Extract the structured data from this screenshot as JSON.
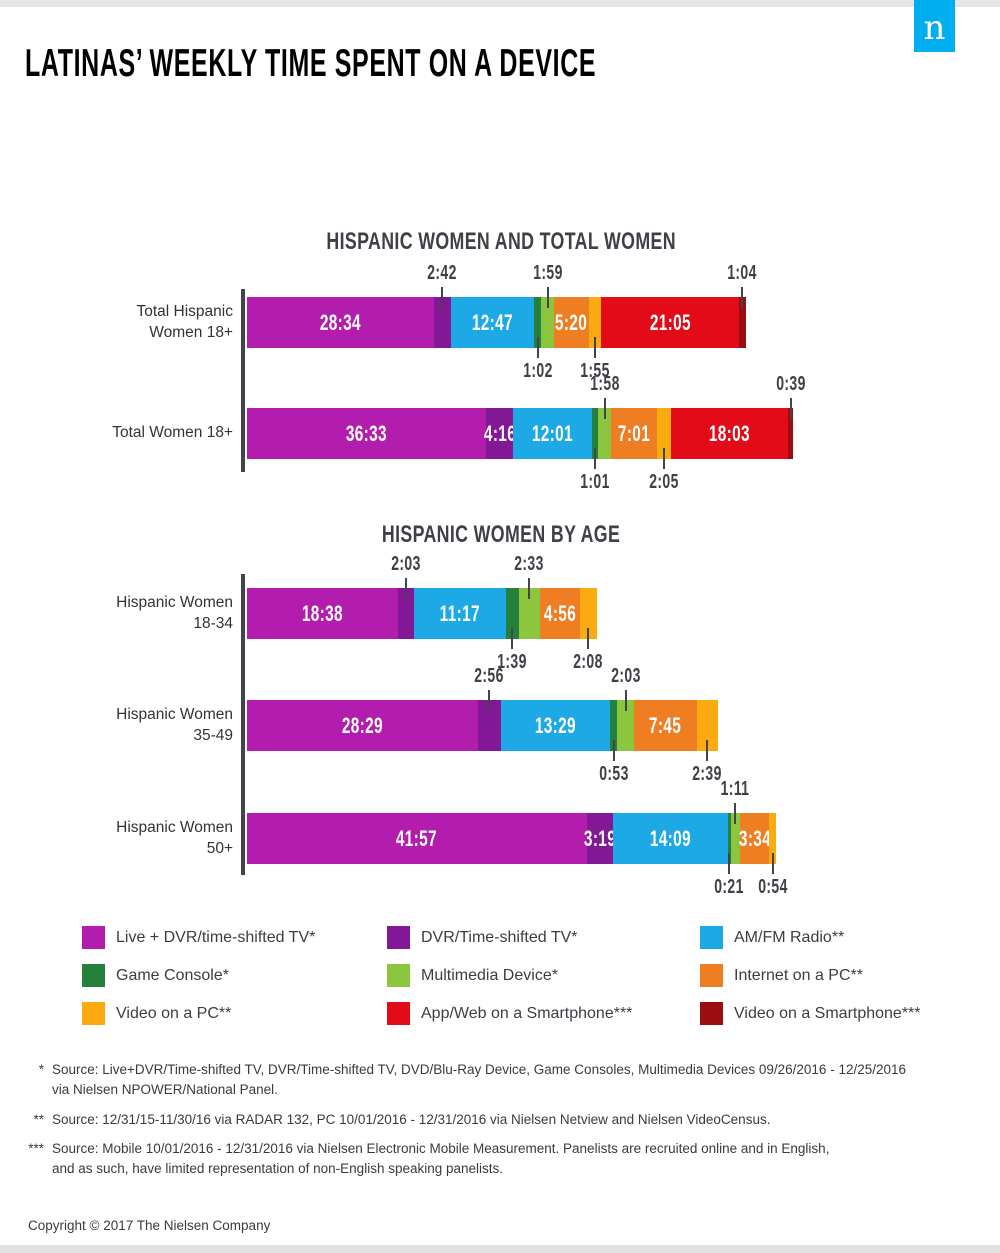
{
  "page": {
    "title": "LATINAS’ WEEKLY TIME SPENT ON A DEVICE",
    "logo_letter": "n",
    "copyright": "Copyright © 2017 The Nielsen Company"
  },
  "colors": {
    "magenta": "#B21DAD",
    "purple": "#821896",
    "blue": "#1CA9E5",
    "dark_green": "#24803A",
    "light_green": "#8CC63F",
    "orange": "#EF7D22",
    "yellow": "#FBAB10",
    "red": "#E30B17",
    "dark_red": "#9C0D12",
    "nielsen_blue": "#00AEEF",
    "axis_gray": "#43434B"
  },
  "legend": [
    {
      "label": "Live + DVR/time-shifted TV*",
      "color": "magenta"
    },
    {
      "label": "DVR/Time-shifted TV*",
      "color": "purple"
    },
    {
      "label": "AM/FM Radio**",
      "color": "blue"
    },
    {
      "label": "Game Console*",
      "color": "dark_green"
    },
    {
      "label": "Multimedia Device*",
      "color": "light_green"
    },
    {
      "label": "Internet on a PC**",
      "color": "orange"
    },
    {
      "label": "Video on a PC**",
      "color": "yellow"
    },
    {
      "label": "App/Web on a Smartphone***",
      "color": "red"
    },
    {
      "label": "Video on a Smartphone***",
      "color": "dark_red"
    }
  ],
  "footnotes": [
    {
      "marker": "*",
      "text": "Source: Live+DVR/Time-shifted TV, DVR/Time-shifted TV, DVD/Blu-Ray Device, Game Consoles, Multimedia Devices 09/26/2016 - 12/25/2016\nvia Nielsen NPOWER/National Panel."
    },
    {
      "marker": "**",
      "text": "Source: 12/31/15-11/30/16 via RADAR 132, PC 10/01/2016 - 12/31/2016 via Nielsen Netview and Nielsen VideoCensus."
    },
    {
      "marker": "***",
      "text": "Source: Mobile 10/01/2016 - 12/31/2016 via Nielsen Electronic Mobile Measurement. Panelists are recruited online and in English,\nand as such, have limited representation of non-English speaking panelists."
    }
  ],
  "chart_data": [
    {
      "type": "bar",
      "orientation": "horizontal",
      "stacked": true,
      "title": "HISPANIC WOMEN AND TOTAL WOMEN",
      "value_format": "hours:minutes per week",
      "bars": [
        {
          "category": "Total Hispanic Women 18+",
          "category_lines": [
            "Total Hispanic",
            "Women 18+"
          ],
          "segments": [
            {
              "name": "Live + DVR/time-shifted TV",
              "value": "28:34",
              "color": "magenta",
              "label_pos": "inside"
            },
            {
              "name": "DVR/Time-shifted TV",
              "value": "2:42",
              "color": "purple",
              "label_pos": "above"
            },
            {
              "name": "AM/FM Radio",
              "value": "12:47",
              "color": "blue",
              "label_pos": "inside"
            },
            {
              "name": "Game Console",
              "value": "1:02",
              "color": "dark_green",
              "label_pos": "below"
            },
            {
              "name": "Multimedia Device",
              "value": "1:59",
              "color": "light_green",
              "label_pos": "above"
            },
            {
              "name": "Internet on a PC",
              "value": "5:20",
              "color": "orange",
              "label_pos": "inside"
            },
            {
              "name": "Video on a PC",
              "value": "1:55",
              "color": "yellow",
              "label_pos": "below"
            },
            {
              "name": "App/Web on a Smartphone",
              "value": "21:05",
              "color": "red",
              "label_pos": "inside"
            },
            {
              "name": "Video on a Smartphone",
              "value": "1:04",
              "color": "dark_red",
              "label_pos": "above"
            }
          ]
        },
        {
          "category": "Total Women 18+",
          "category_lines": [
            "Total Women 18+"
          ],
          "segments": [
            {
              "name": "Live + DVR/time-shifted TV",
              "value": "36:33",
              "color": "magenta",
              "label_pos": "inside"
            },
            {
              "name": "DVR/Time-shifted TV",
              "value": "4:16",
              "color": "purple",
              "label_pos": "inside"
            },
            {
              "name": "AM/FM Radio",
              "value": "12:01",
              "color": "blue",
              "label_pos": "inside"
            },
            {
              "name": "Game Console",
              "value": "1:01",
              "color": "dark_green",
              "label_pos": "below"
            },
            {
              "name": "Multimedia Device",
              "value": "1:58",
              "color": "light_green",
              "label_pos": "above"
            },
            {
              "name": "Internet on a PC",
              "value": "7:01",
              "color": "orange",
              "label_pos": "inside"
            },
            {
              "name": "Video on a PC",
              "value": "2:05",
              "color": "yellow",
              "label_pos": "below"
            },
            {
              "name": "App/Web on a Smartphone",
              "value": "18:03",
              "color": "red",
              "label_pos": "inside"
            },
            {
              "name": "Video on a Smartphone",
              "value": "0:39",
              "color": "dark_red",
              "label_pos": "above"
            }
          ]
        }
      ]
    },
    {
      "type": "bar",
      "orientation": "horizontal",
      "stacked": true,
      "title": "HISPANIC WOMEN BY AGE",
      "value_format": "hours:minutes per week",
      "bars": [
        {
          "category": "Hispanic Women 18-34",
          "category_lines": [
            "Hispanic Women",
            "18-34"
          ],
          "segments": [
            {
              "name": "Live + DVR/time-shifted TV",
              "value": "18:38",
              "color": "magenta",
              "label_pos": "inside"
            },
            {
              "name": "DVR/Time-shifted TV",
              "value": "2:03",
              "color": "purple",
              "label_pos": "above"
            },
            {
              "name": "AM/FM Radio",
              "value": "11:17",
              "color": "blue",
              "label_pos": "inside"
            },
            {
              "name": "Game Console",
              "value": "1:39",
              "color": "dark_green",
              "label_pos": "below"
            },
            {
              "name": "Multimedia Device",
              "value": "2:33",
              "color": "light_green",
              "label_pos": "above"
            },
            {
              "name": "Internet on a PC",
              "value": "4:56",
              "color": "orange",
              "label_pos": "inside"
            },
            {
              "name": "Video on a PC",
              "value": "2:08",
              "color": "yellow",
              "label_pos": "below"
            }
          ]
        },
        {
          "category": "Hispanic Women 35-49",
          "category_lines": [
            "Hispanic Women",
            "35-49"
          ],
          "segments": [
            {
              "name": "Live + DVR/time-shifted TV",
              "value": "28:29",
              "color": "magenta",
              "label_pos": "inside"
            },
            {
              "name": "DVR/Time-shifted TV",
              "value": "2:56",
              "color": "purple",
              "label_pos": "above"
            },
            {
              "name": "AM/FM Radio",
              "value": "13:29",
              "color": "blue",
              "label_pos": "inside"
            },
            {
              "name": "Game Console",
              "value": "0:53",
              "color": "dark_green",
              "label_pos": "below"
            },
            {
              "name": "Multimedia Device",
              "value": "2:03",
              "color": "light_green",
              "label_pos": "above"
            },
            {
              "name": "Internet on a PC",
              "value": "7:45",
              "color": "orange",
              "label_pos": "inside"
            },
            {
              "name": "Video on a PC",
              "value": "2:39",
              "color": "yellow",
              "label_pos": "below"
            }
          ]
        },
        {
          "category": "Hispanic Women 50+",
          "category_lines": [
            "Hispanic Women",
            "50+"
          ],
          "segments": [
            {
              "name": "Live + DVR/time-shifted TV",
              "value": "41:57",
              "color": "magenta",
              "label_pos": "inside"
            },
            {
              "name": "DVR/Time-shifted TV",
              "value": "3:19",
              "color": "purple",
              "label_pos": "inside"
            },
            {
              "name": "AM/FM Radio",
              "value": "14:09",
              "color": "blue",
              "label_pos": "inside"
            },
            {
              "name": "Game Console",
              "value": "0:21",
              "color": "dark_green",
              "label_pos": "below"
            },
            {
              "name": "Multimedia Device",
              "value": "1:11",
              "color": "light_green",
              "label_pos": "above"
            },
            {
              "name": "Internet on a PC",
              "value": "3:34",
              "color": "orange",
              "label_pos": "inside"
            },
            {
              "name": "Video on a PC",
              "value": "0:54",
              "color": "yellow",
              "label_pos": "below"
            }
          ]
        }
      ]
    }
  ]
}
